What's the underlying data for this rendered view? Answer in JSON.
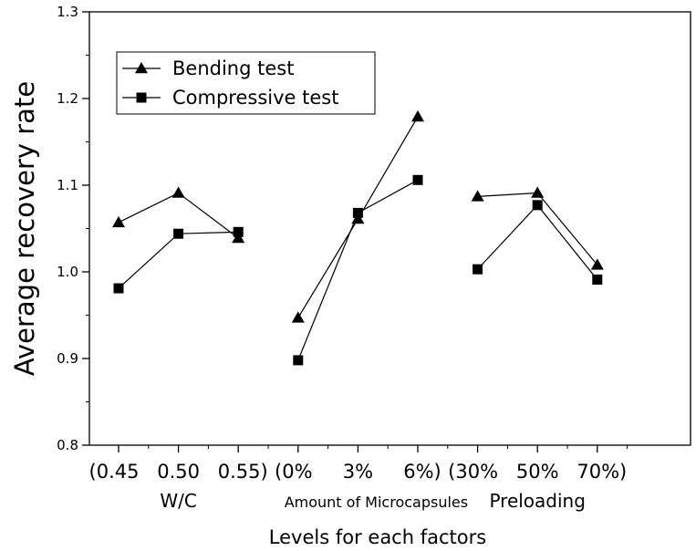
{
  "chart_data": {
    "type": "line",
    "xlabel": "Levels for each factors",
    "ylabel": "Average recovery rate",
    "ylim": [
      0.8,
      1.3
    ],
    "yticks": [
      "0.8",
      "0.9",
      "1.0",
      "1.1",
      "1.2",
      "1.3"
    ],
    "grid": false,
    "legend_position": "top-left",
    "categories": [
      "(0.45",
      "0.50",
      "0.55)",
      "(0%",
      "3%",
      "6%)",
      "(30%",
      "50%",
      "70%)"
    ],
    "groups": [
      {
        "label": "W/C",
        "indices": [
          0,
          1,
          2
        ]
      },
      {
        "label": "Amount of Microcapsules",
        "indices": [
          3,
          4,
          5
        ]
      },
      {
        "label": "Preloading",
        "indices": [
          6,
          7,
          8
        ]
      }
    ],
    "series": [
      {
        "name": "Bending test",
        "marker": "triangle",
        "color": "#000000",
        "values": [
          1.057,
          1.091,
          1.039,
          0.947,
          1.061,
          1.179,
          1.087,
          1.091,
          1.008
        ]
      },
      {
        "name": "Compressive test",
        "marker": "square",
        "color": "#000000",
        "values": [
          0.981,
          1.044,
          1.046,
          0.898,
          1.068,
          1.106,
          1.003,
          1.077,
          0.991
        ]
      }
    ]
  }
}
